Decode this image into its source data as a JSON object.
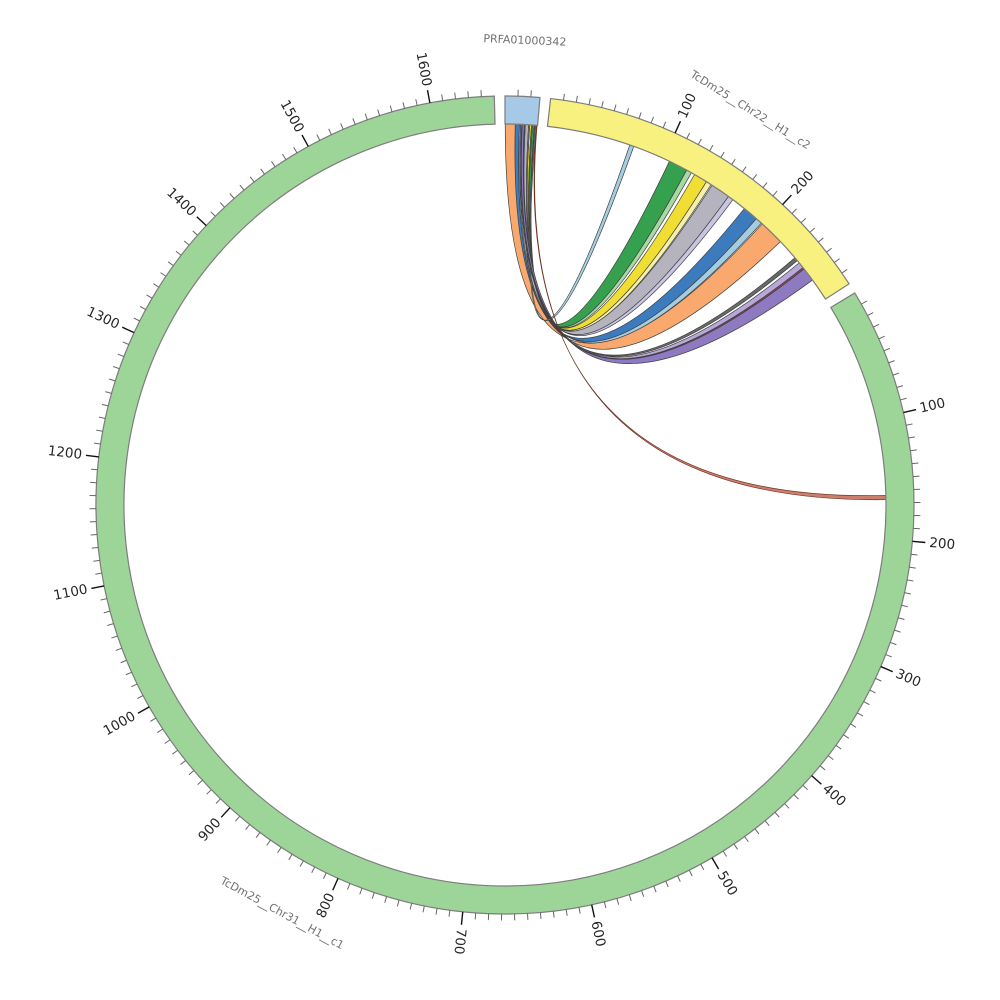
{
  "chart_data": {
    "type": "chord",
    "layout_hint": "circos-style circular synteny plot, three sectors with tick rulers, ribbons from small sector to two target sectors",
    "tick_label_color": "#262626",
    "sector_label_color": "#707070",
    "sector_outline_color": "#7d7d7d",
    "ribbon_outline_color": "#3f3f3f",
    "sectors": [
      {
        "name": "PRFA01000342",
        "label": "PRFA01000342",
        "length": 27,
        "color": "#a5c9e6",
        "ticks": {
          "minor_interval": 10,
          "major_interval": 100,
          "major_labels": []
        }
      },
      {
        "name": "TcDm25__Chr22__H1__c2",
        "label": "TcDm25__Chr22__H1__c2",
        "length": 280,
        "color": "#f8f180",
        "ticks": {
          "minor_interval": 10,
          "major_interval": 100,
          "major_labels": [
            100,
            200
          ]
        }
      },
      {
        "name": "TcDm25__Chr31__H1__c1",
        "label": "TcDm25__Chr31__H1__c1",
        "length": 1650,
        "color": "#9dd599",
        "ticks": {
          "minor_interval": 10,
          "major_interval": 100,
          "major_labels": [
            100,
            200,
            300,
            400,
            500,
            600,
            700,
            800,
            900,
            1000,
            1100,
            1200,
            1300,
            1400,
            1500,
            1600
          ]
        }
      }
    ],
    "links": [
      {
        "id": "green",
        "source": "PRFA01000342",
        "source_span": [
          22.7,
          24.4
        ],
        "target": "TcDm25__Chr22__H1__c2",
        "target_span": [
          105.5,
          121.5
        ],
        "color": "#35a14e"
      },
      {
        "id": "green-light",
        "source": "PRFA01000342",
        "source_span": [
          24.4,
          25.1
        ],
        "target": "TcDm25__Chr22__H1__c2",
        "target_span": [
          121.5,
          126.0
        ],
        "color": "#a9d9a2"
      },
      {
        "id": "yellow",
        "source": "PRFA01000342",
        "source_span": [
          20.4,
          22.0
        ],
        "target": "TcDm25__Chr22__H1__c2",
        "target_span": [
          129.0,
          140.5
        ],
        "color": "#f0de33"
      },
      {
        "id": "yellow-pale",
        "source": "PRFA01000342",
        "source_span": [
          22.0,
          22.7
        ],
        "target": "TcDm25__Chr22__H1__c2",
        "target_span": [
          140.5,
          145.0
        ],
        "color": "#f7f0a8"
      },
      {
        "id": "gray",
        "source": "PRFA01000342",
        "source_span": [
          16.8,
          19.6
        ],
        "target": "TcDm25__Chr22__H1__c2",
        "target_span": [
          146.0,
          162.5
        ],
        "color": "#b5b4be"
      },
      {
        "id": "gray-light",
        "source": "PRFA01000342",
        "source_span": [
          19.6,
          20.4
        ],
        "target": "TcDm25__Chr22__H1__c2",
        "target_span": [
          162.5,
          167.0
        ],
        "color": "#c9c4e1"
      },
      {
        "id": "blue",
        "source": "PRFA01000342",
        "source_span": [
          8.5,
          12.0
        ],
        "target": "TcDm25__Chr22__H1__c2",
        "target_span": [
          179.0,
          192.0
        ],
        "color": "#3c7cbe"
      },
      {
        "id": "blue-light",
        "source": "PRFA01000342",
        "source_span": [
          12.0,
          13.0
        ],
        "target": "TcDm25__Chr22__H1__c2",
        "target_span": [
          192.0,
          197.5
        ],
        "color": "#a5cde2"
      },
      {
        "id": "orange",
        "source": "PRFA01000342",
        "source_span": [
          0.2,
          8.5
        ],
        "target": "TcDm25__Chr22__H1__c2",
        "target_span": [
          198.5,
          219.5
        ],
        "color": "#f9a96d"
      },
      {
        "id": "lightblue-thin",
        "source": "PRFA01000342",
        "source_span": [
          25.1,
          25.9
        ],
        "target": "TcDm25__Chr22__H1__c2",
        "target_span": [
          70.0,
          73.5
        ],
        "color": "#a5cde2"
      },
      {
        "id": "dark-thin",
        "source": "PRFA01000342",
        "source_span": [
          16.0,
          16.8
        ],
        "target": "TcDm25__Chr22__H1__c2",
        "target_span": [
          237.5,
          240.5
        ],
        "color": "#6a6a6a"
      },
      {
        "id": "purple-light",
        "source": "PRFA01000342",
        "source_span": [
          13.0,
          13.9
        ],
        "target": "TcDm25__Chr22__H1__c2",
        "target_span": [
          243.0,
          248.0
        ],
        "color": "#b7a8d9"
      },
      {
        "id": "maroon-thin",
        "source": "PRFA01000342",
        "source_span": [
          13.9,
          14.3
        ],
        "target": "TcDm25__Chr22__H1__c2",
        "target_span": [
          248.0,
          249.5
        ],
        "color": "#8f4660"
      },
      {
        "id": "purple",
        "source": "PRFA01000342",
        "source_span": [
          14.3,
          16.0
        ],
        "target": "TcDm25__Chr22__H1__c2",
        "target_span": [
          249.5,
          261.0
        ],
        "color": "#8d7ac1"
      },
      {
        "id": "red-thin",
        "source": "PRFA01000342",
        "source_span": [
          26.0,
          26.6
        ],
        "target": "TcDm25__Chr31__H1__c1",
        "target_span": [
          164.0,
          167.5
        ],
        "color": "#cc7e6d",
        "stroke": "#6f3525"
      }
    ]
  }
}
